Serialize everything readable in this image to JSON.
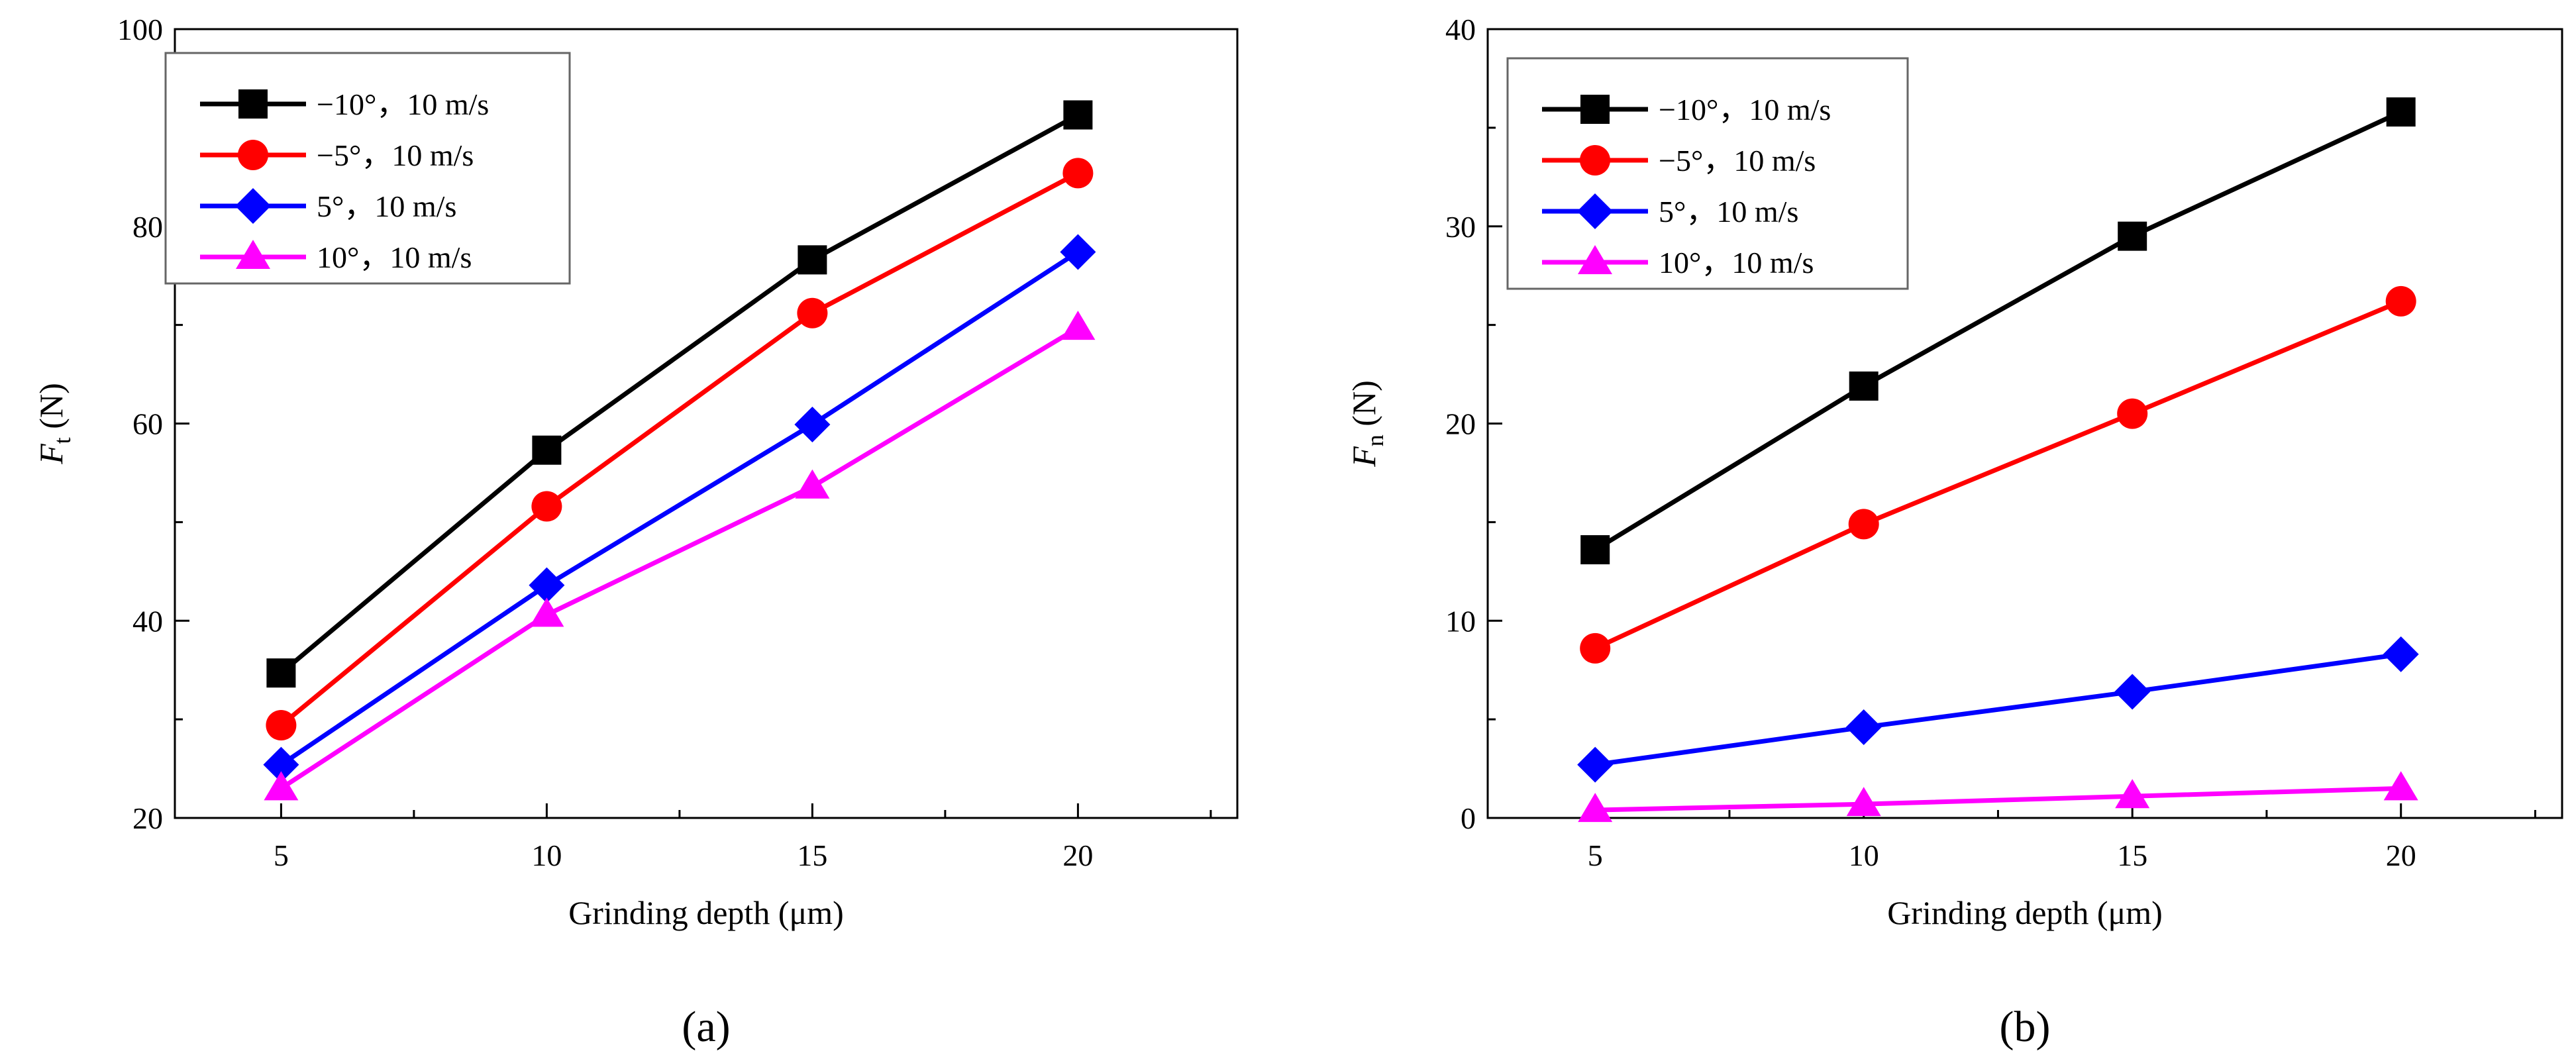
{
  "chart_data": [
    {
      "type": "line",
      "panel_label": "(a)",
      "xlabel": "Grinding depth (μm)",
      "ylabel": {
        "main": "F",
        "sub": "t",
        "unit": " (N)"
      },
      "x": [
        5,
        10,
        15,
        20
      ],
      "xticks": [
        "5",
        "10",
        "15",
        "20"
      ],
      "xlim": [
        3,
        23
      ],
      "ylim": [
        20,
        100
      ],
      "yticks": [
        "20",
        "40",
        "60",
        "80",
        "100"
      ],
      "grid": false,
      "legend_position": "top-left",
      "series": [
        {
          "name": "−10°，10 m/s",
          "color": "#000000",
          "marker": "square",
          "values": [
            34.7,
            57.3,
            76.6,
            91.3
          ]
        },
        {
          "name": "−5°，10 m/s",
          "color": "#ff0000",
          "marker": "circle",
          "values": [
            29.4,
            51.6,
            71.2,
            85.4
          ]
        },
        {
          "name": "5°，10 m/s",
          "color": "#0000ff",
          "marker": "diamond",
          "values": [
            25.4,
            43.6,
            59.9,
            77.4
          ]
        },
        {
          "name": "10°，10 m/s",
          "color": "#ff00ff",
          "marker": "triangle",
          "values": [
            23.0,
            40.6,
            53.6,
            69.7
          ]
        }
      ]
    },
    {
      "type": "line",
      "panel_label": "(b)",
      "xlabel": "Grinding depth (μm)",
      "ylabel": {
        "main": "F",
        "sub": "n",
        "unit": " (N)"
      },
      "x": [
        5,
        10,
        15,
        20
      ],
      "xticks": [
        "5",
        "10",
        "15",
        "20"
      ],
      "xlim": [
        3,
        23
      ],
      "ylim": [
        0,
        40
      ],
      "yticks": [
        "0",
        "10",
        "20",
        "30",
        "40"
      ],
      "grid": false,
      "legend_position": "top-left",
      "series": [
        {
          "name": "−10°，10 m/s",
          "color": "#000000",
          "marker": "square",
          "values": [
            13.6,
            21.9,
            29.5,
            35.8
          ]
        },
        {
          "name": "−5°，10 m/s",
          "color": "#ff0000",
          "marker": "circle",
          "values": [
            8.6,
            14.9,
            20.5,
            26.2
          ]
        },
        {
          "name": "5°，10 m/s",
          "color": "#0000ff",
          "marker": "diamond",
          "values": [
            2.7,
            4.6,
            6.4,
            8.3
          ]
        },
        {
          "name": "10°，10 m/s",
          "color": "#ff00ff",
          "marker": "triangle",
          "values": [
            0.4,
            0.7,
            1.1,
            1.5
          ]
        }
      ]
    }
  ]
}
